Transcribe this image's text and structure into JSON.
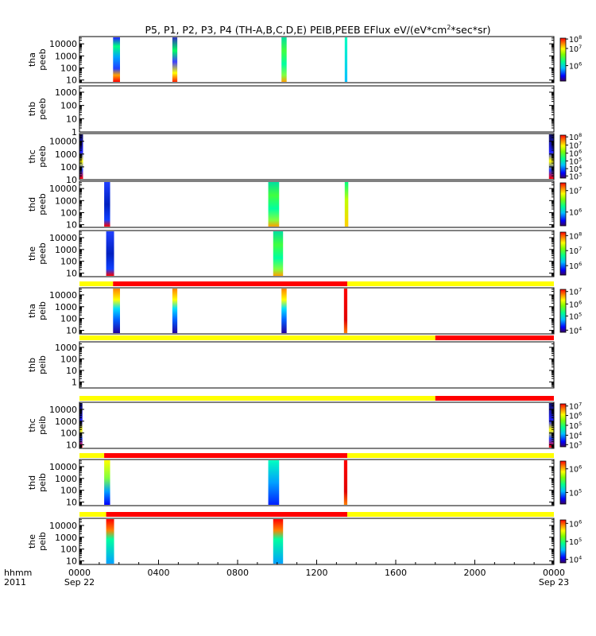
{
  "chart_data": {
    "type": "heatmap",
    "title": "P5, P1, P2, P3, P4 (TH-A,B,C,D,E) PEIB,PEEB EFlux eV/(eV*cm",
    "title_sup": "2",
    "title_tail": "*sec*sr)",
    "x_axis": {
      "unit_label": "hhmm",
      "year_label": "2011",
      "range_hours": [
        0,
        24
      ],
      "ticks": [
        {
          "hour": 0,
          "label": "0000",
          "sublabel": "Sep 22"
        },
        {
          "hour": 4,
          "label": "0400",
          "sublabel": ""
        },
        {
          "hour": 8,
          "label": "0800",
          "sublabel": ""
        },
        {
          "hour": 12,
          "label": "1200",
          "sublabel": ""
        },
        {
          "hour": 16,
          "label": "1600",
          "sublabel": ""
        },
        {
          "hour": 20,
          "label": "2000",
          "sublabel": ""
        },
        {
          "hour": 24,
          "label": "0000",
          "sublabel": "Sep 23"
        }
      ]
    },
    "panels": [
      {
        "id": "tha-peeb",
        "ylabel1": "tha",
        "ylabel2": "peeb",
        "yrange": [
          6,
          40000
        ],
        "yticks": [
          {
            "v": 10,
            "label": "10"
          },
          {
            "v": 100,
            "label": "100"
          },
          {
            "v": 1000,
            "label": "1000"
          },
          {
            "v": 10000,
            "label": "10000"
          }
        ],
        "colorbar": [
          {
            "f": 0.36,
            "label": "10",
            "exp": "6"
          },
          {
            "f": 0.76,
            "label": "10",
            "exp": "7"
          },
          {
            "f": 0.98,
            "label": "10",
            "exp": "8"
          }
        ],
        "bursts": [
          {
            "start": 1.7,
            "end": 2.05,
            "style": "cold-top-hot-bottom"
          },
          {
            "start": 4.7,
            "end": 4.95,
            "style": "mixed"
          },
          {
            "start": 10.22,
            "end": 10.48,
            "style": "green"
          },
          {
            "start": 13.42,
            "end": 13.55,
            "style": "narrow-cyan"
          }
        ]
      },
      {
        "id": "thb-peeb",
        "ylabel1": "thb",
        "ylabel2": "peeb",
        "yrange": [
          1,
          3000
        ],
        "yticks": [
          {
            "v": 1,
            "label": "1"
          },
          {
            "v": 10,
            "label": "10"
          },
          {
            "v": 100,
            "label": "100"
          },
          {
            "v": 1000,
            "label": "1000"
          }
        ],
        "colorbar": [],
        "bursts": []
      },
      {
        "id": "thc-peeb",
        "ylabel1": "thc",
        "ylabel2": "peeb",
        "yrange": [
          10,
          40000
        ],
        "yticks": [
          {
            "v": 10,
            "label": "10"
          },
          {
            "v": 100,
            "label": "100"
          },
          {
            "v": 1000,
            "label": "1000"
          },
          {
            "v": 10000,
            "label": "10000"
          }
        ],
        "colorbar": [
          {
            "f": 0.05,
            "label": "10",
            "exp": "3"
          },
          {
            "f": 0.22,
            "label": "10",
            "exp": "4"
          },
          {
            "f": 0.4,
            "label": "10",
            "exp": "5"
          },
          {
            "f": 0.58,
            "label": "10",
            "exp": "6"
          },
          {
            "f": 0.77,
            "label": "10",
            "exp": "7"
          },
          {
            "f": 0.96,
            "label": "10",
            "exp": "8"
          }
        ],
        "bursts": [
          {
            "start": 0.0,
            "end": 0.18,
            "style": "edge-dark"
          },
          {
            "start": 23.75,
            "end": 24.0,
            "style": "edge-dark"
          }
        ]
      },
      {
        "id": "thd-peeb",
        "ylabel1": "thd",
        "ylabel2": "peeb",
        "yrange": [
          6,
          40000
        ],
        "yticks": [
          {
            "v": 10,
            "label": "10"
          },
          {
            "v": 100,
            "label": "100"
          },
          {
            "v": 1000,
            "label": "1000"
          },
          {
            "v": 10000,
            "label": "10000"
          }
        ],
        "colorbar": [
          {
            "f": 0.32,
            "label": "10",
            "exp": "6"
          },
          {
            "f": 0.82,
            "label": "10",
            "exp": "7"
          }
        ],
        "bursts": [
          {
            "start": 1.25,
            "end": 1.55,
            "style": "dark-blue"
          },
          {
            "start": 9.55,
            "end": 10.1,
            "style": "green"
          },
          {
            "start": 13.42,
            "end": 13.6,
            "style": "narrow-yellow"
          }
        ]
      },
      {
        "id": "the-peeb",
        "ylabel1": "the",
        "ylabel2": "peeb",
        "yrange": [
          5,
          40000
        ],
        "yticks": [
          {
            "v": 10,
            "label": "10"
          },
          {
            "v": 100,
            "label": "100"
          },
          {
            "v": 1000,
            "label": "1000"
          },
          {
            "v": 10000,
            "label": "10000"
          }
        ],
        "colorbar": [
          {
            "f": 0.22,
            "label": "10",
            "exp": "6"
          },
          {
            "f": 0.57,
            "label": "10",
            "exp": "7"
          },
          {
            "f": 0.92,
            "label": "10",
            "exp": "8"
          }
        ],
        "bursts": [
          {
            "start": 1.35,
            "end": 1.75,
            "style": "dark-blue"
          },
          {
            "start": 9.8,
            "end": 10.3,
            "style": "green"
          }
        ]
      },
      {
        "id": "tha-peib",
        "ylabel1": "tha",
        "ylabel2": "peib",
        "yrange": [
          5,
          40000
        ],
        "yticks": [
          {
            "v": 10,
            "label": "10"
          },
          {
            "v": 100,
            "label": "100"
          },
          {
            "v": 1000,
            "label": "1000"
          },
          {
            "v": 10000,
            "label": "10000"
          }
        ],
        "colorbar": [
          {
            "f": 0.05,
            "label": "10",
            "exp": "4"
          },
          {
            "f": 0.38,
            "label": "10",
            "exp": "5"
          },
          {
            "f": 0.66,
            "label": "10",
            "exp": "6"
          },
          {
            "f": 0.95,
            "label": "10",
            "exp": "7"
          }
        ],
        "mode_bar": [
          {
            "start": 0,
            "end": 1.7,
            "color": "#ffff00"
          },
          {
            "start": 1.7,
            "end": 13.55,
            "color": "#ff0000"
          },
          {
            "start": 13.55,
            "end": 24,
            "color": "#ffff00"
          }
        ],
        "bursts": [
          {
            "start": 1.7,
            "end": 2.05,
            "style": "ion-warm-top"
          },
          {
            "start": 4.7,
            "end": 4.95,
            "style": "ion-warm-top"
          },
          {
            "start": 10.22,
            "end": 10.48,
            "style": "ion-warm-top"
          },
          {
            "start": 13.38,
            "end": 13.55,
            "style": "ion-red-column"
          }
        ]
      },
      {
        "id": "thb-peib",
        "ylabel1": "thb",
        "ylabel2": "peib",
        "yrange": [
          0.3,
          3000
        ],
        "yticks": [
          {
            "v": 1,
            "label": "1"
          },
          {
            "v": 10,
            "label": "10"
          },
          {
            "v": 100,
            "label": "100"
          },
          {
            "v": 1000,
            "label": "1000"
          }
        ],
        "colorbar": [],
        "mode_bar": [
          {
            "start": 0,
            "end": 18,
            "color": "#ffff00"
          },
          {
            "start": 18,
            "end": 24,
            "color": "#ff0000"
          }
        ],
        "bursts": []
      },
      {
        "id": "thc-peib",
        "ylabel1": "thc",
        "ylabel2": "peib",
        "yrange": [
          5,
          40000
        ],
        "yticks": [
          {
            "v": 10,
            "label": "10"
          },
          {
            "v": 100,
            "label": "100"
          },
          {
            "v": 1000,
            "label": "1000"
          },
          {
            "v": 10000,
            "label": "10000"
          }
        ],
        "colorbar": [
          {
            "f": 0.05,
            "label": "10",
            "exp": "3"
          },
          {
            "f": 0.27,
            "label": "10",
            "exp": "4"
          },
          {
            "f": 0.5,
            "label": "10",
            "exp": "5"
          },
          {
            "f": 0.73,
            "label": "10",
            "exp": "6"
          },
          {
            "f": 0.95,
            "label": "10",
            "exp": "7"
          }
        ],
        "mode_bar": [
          {
            "start": 0,
            "end": 18,
            "color": "#ffff00"
          },
          {
            "start": 18,
            "end": 24,
            "color": "#ff0000"
          }
        ],
        "bursts": [
          {
            "start": 0.0,
            "end": 0.15,
            "style": "edge-dark"
          },
          {
            "start": 23.75,
            "end": 24.0,
            "style": "edge-dark"
          }
        ]
      },
      {
        "id": "thd-peib",
        "ylabel1": "thd",
        "ylabel2": "peib",
        "yrange": [
          5,
          40000
        ],
        "yticks": [
          {
            "v": 10,
            "label": "10"
          },
          {
            "v": 100,
            "label": "100"
          },
          {
            "v": 1000,
            "label": "1000"
          },
          {
            "v": 10000,
            "label": "10000"
          }
        ],
        "colorbar": [
          {
            "f": 0.27,
            "label": "10",
            "exp": "5"
          },
          {
            "f": 0.82,
            "label": "10",
            "exp": "6"
          }
        ],
        "mode_bar": [
          {
            "start": 0,
            "end": 1.25,
            "color": "#ffff00"
          },
          {
            "start": 1.25,
            "end": 13.55,
            "color": "#ff0000"
          },
          {
            "start": 13.55,
            "end": 24,
            "color": "#ffff00"
          }
        ],
        "bursts": [
          {
            "start": 1.25,
            "end": 1.55,
            "style": "ion-yellow-blue"
          },
          {
            "start": 9.55,
            "end": 10.1,
            "style": "ion-cyan-blue"
          },
          {
            "start": 13.38,
            "end": 13.55,
            "style": "ion-red-column"
          }
        ]
      },
      {
        "id": "the-peib",
        "ylabel1": "the",
        "ylabel2": "peib",
        "yrange": [
          5,
          40000
        ],
        "yticks": [
          {
            "v": 10,
            "label": "10"
          },
          {
            "v": 100,
            "label": "100"
          },
          {
            "v": 1000,
            "label": "1000"
          },
          {
            "v": 10000,
            "label": "10000"
          }
        ],
        "colorbar": [
          {
            "f": 0.08,
            "label": "10",
            "exp": "4"
          },
          {
            "f": 0.5,
            "label": "10",
            "exp": "5"
          },
          {
            "f": 0.92,
            "label": "10",
            "exp": "6"
          }
        ],
        "mode_bar": [
          {
            "start": 0,
            "end": 1.35,
            "color": "#ffff00"
          },
          {
            "start": 1.35,
            "end": 13.55,
            "color": "#ff0000"
          },
          {
            "start": 13.55,
            "end": 24,
            "color": "#ffff00"
          }
        ],
        "bursts": [
          {
            "start": 1.35,
            "end": 1.75,
            "style": "ion-red-top"
          },
          {
            "start": 9.8,
            "end": 10.3,
            "style": "ion-red-top"
          }
        ]
      }
    ]
  }
}
